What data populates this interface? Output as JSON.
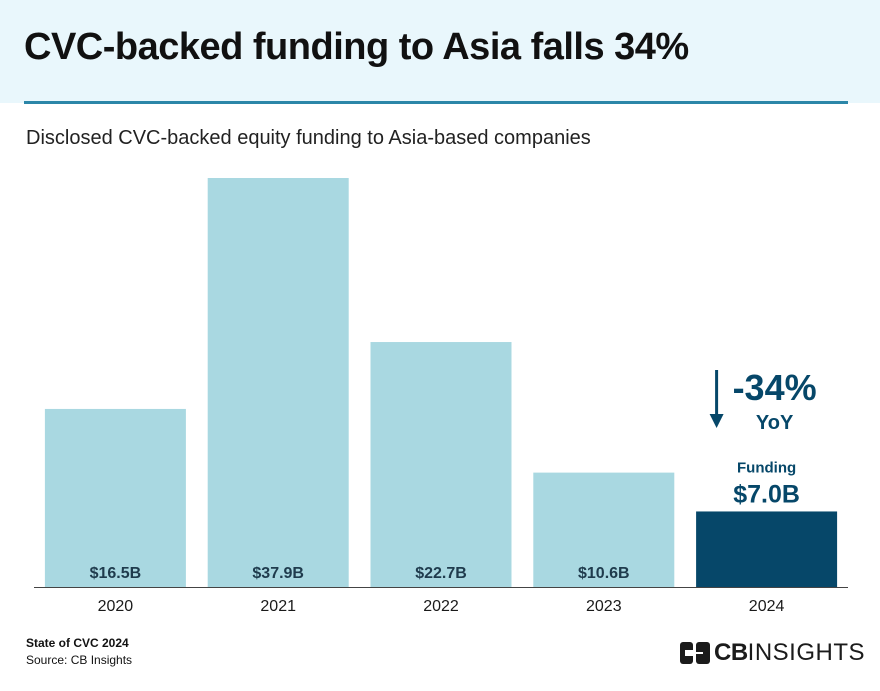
{
  "header": {
    "title": "CVC-backed funding to Asia falls 34%",
    "subtitle": "Disclosed CVC-backed equity funding to Asia-based companies"
  },
  "chart_data": {
    "type": "bar",
    "categories": [
      "2020",
      "2021",
      "2022",
      "2023",
      "2024"
    ],
    "values": [
      16.5,
      37.9,
      22.7,
      10.6,
      7.0
    ],
    "value_labels": [
      "$16.5B",
      "$37.9B",
      "$22.7B",
      "$10.6B",
      "$7.0B"
    ],
    "unit": "$B",
    "colors": {
      "default_bar": "#a9d8e1",
      "highlight_bar": "#064769",
      "label": "#1f3b4d",
      "axis": "#444444"
    },
    "highlight_index": 4,
    "highlight_label": "Funding",
    "annotation": {
      "change": "-34%",
      "period": "YoY",
      "icon": "down-arrow-icon"
    },
    "grid": false
  },
  "footer": {
    "report": "State of CVC 2024",
    "source": "Source: CB Insights"
  },
  "brand": {
    "logo_icon": "cb-insights-logo-icon",
    "name_bold": "CB",
    "name_light": "INSIGHTS"
  }
}
